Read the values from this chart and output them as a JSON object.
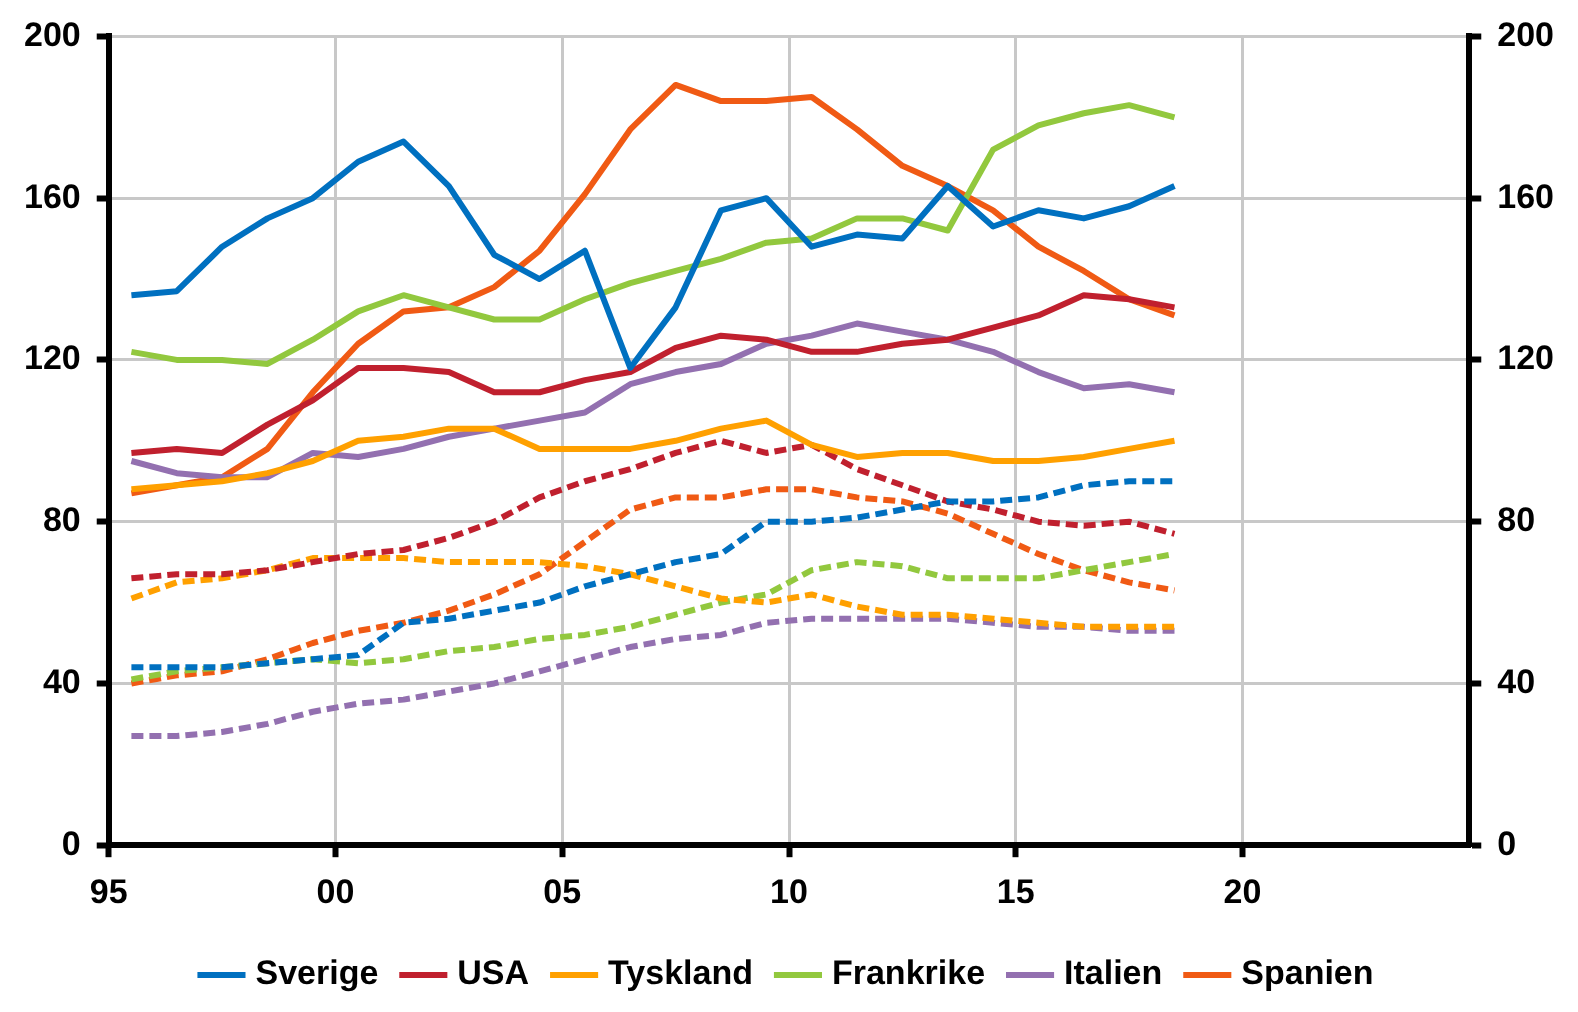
{
  "chart_data": {
    "type": "line",
    "x": [
      1995.5,
      1996.5,
      1997.5,
      1998.5,
      1999.5,
      2000.5,
      2001.5,
      2002.5,
      2003.5,
      2004.5,
      2005.5,
      2006.5,
      2007.5,
      2008.5,
      2009.5,
      2010.5,
      2011.5,
      2012.5,
      2013.5,
      2014.5,
      2015.5,
      2016.5,
      2017.5,
      2018.5
    ],
    "series": [
      {
        "name": "Sverige",
        "color": "#0070c0",
        "line_style": "solid",
        "values": [
          136,
          137,
          148,
          155,
          160,
          169,
          174,
          163,
          146,
          140,
          147,
          118,
          133,
          157,
          160,
          148,
          151,
          150,
          163,
          153,
          157,
          155,
          158,
          163
        ]
      },
      {
        "name": "USA",
        "color": "#c0202e",
        "line_style": "solid",
        "values": [
          97,
          98,
          97,
          104,
          110,
          118,
          118,
          117,
          112,
          112,
          115,
          117,
          123,
          126,
          125,
          122,
          122,
          124,
          125,
          128,
          131,
          136,
          135,
          133
        ]
      },
      {
        "name": "Tyskland",
        "color": "#ffa000",
        "line_style": "solid",
        "values": [
          88,
          89,
          90,
          92,
          95,
          100,
          101,
          103,
          103,
          98,
          98,
          98,
          100,
          103,
          105,
          99,
          96,
          97,
          97,
          95,
          95,
          96,
          98,
          100
        ]
      },
      {
        "name": "Frankrike",
        "color": "#92c83e",
        "line_style": "solid",
        "values": [
          122,
          120,
          120,
          119,
          125,
          132,
          136,
          133,
          130,
          130,
          135,
          139,
          142,
          145,
          149,
          150,
          155,
          155,
          152,
          172,
          178,
          181,
          183,
          180
        ]
      },
      {
        "name": "Italien",
        "color": "#9370b0",
        "line_style": "solid",
        "values": [
          95,
          92,
          91,
          91,
          97,
          96,
          98,
          101,
          103,
          105,
          107,
          114,
          117,
          119,
          124,
          126,
          129,
          127,
          125,
          122,
          117,
          113,
          114,
          112
        ]
      },
      {
        "name": "Spanien",
        "color": "#f05a14",
        "line_style": "solid",
        "values": [
          87,
          89,
          91,
          98,
          112,
          124,
          132,
          133,
          138,
          147,
          161,
          177,
          188,
          184,
          184,
          185,
          177,
          168,
          163,
          157,
          148,
          142,
          135,
          131
        ]
      },
      {
        "color": "#0070c0",
        "line_style": "dashed",
        "values": [
          44,
          44,
          44,
          45,
          46,
          47,
          55,
          56,
          58,
          60,
          64,
          67,
          70,
          72,
          80,
          80,
          81,
          83,
          85,
          85,
          86,
          89,
          90,
          90
        ]
      },
      {
        "color": "#c0202e",
        "line_style": "dashed",
        "values": [
          66,
          67,
          67,
          68,
          70,
          72,
          73,
          76,
          80,
          86,
          90,
          93,
          97,
          100,
          97,
          99,
          93,
          89,
          85,
          83,
          80,
          79,
          80,
          77
        ]
      },
      {
        "color": "#ffa000",
        "line_style": "dashed",
        "values": [
          61,
          65,
          66,
          68,
          71,
          71,
          71,
          70,
          70,
          70,
          69,
          67,
          64,
          61,
          60,
          62,
          59,
          57,
          57,
          56,
          55,
          54,
          54,
          54
        ]
      },
      {
        "color": "#92c83e",
        "line_style": "dashed",
        "values": [
          41,
          43,
          44,
          45,
          46,
          45,
          46,
          48,
          49,
          51,
          52,
          54,
          57,
          60,
          62,
          68,
          70,
          69,
          66,
          66,
          66,
          68,
          70,
          72
        ]
      },
      {
        "color": "#9370b0",
        "line_style": "dashed",
        "values": [
          27,
          27,
          28,
          30,
          33,
          35,
          36,
          38,
          40,
          43,
          46,
          49,
          51,
          52,
          55,
          56,
          56,
          56,
          56,
          55,
          54,
          54,
          53,
          53
        ]
      },
      {
        "color": "#f05a14",
        "line_style": "dashed",
        "values": [
          40,
          42,
          43,
          46,
          50,
          53,
          55,
          58,
          62,
          67,
          75,
          83,
          86,
          86,
          88,
          88,
          86,
          85,
          82,
          77,
          72,
          68,
          65,
          63
        ]
      }
    ],
    "xlim": [
      1995,
      2025
    ],
    "xticks": [
      {
        "value": 1995,
        "label": "95"
      },
      {
        "value": 2000,
        "label": "00"
      },
      {
        "value": 2005,
        "label": "05"
      },
      {
        "value": 2010,
        "label": "10"
      },
      {
        "value": 2015,
        "label": "15"
      },
      {
        "value": 2020,
        "label": "20"
      }
    ],
    "ylim": [
      0,
      200
    ],
    "yticks": [
      0,
      40,
      80,
      120,
      160,
      200
    ],
    "y2lim": [
      0,
      200
    ],
    "y2ticks": [
      0,
      40,
      80,
      120,
      160,
      200
    ],
    "grid": true,
    "legend": "bottom",
    "marker": "none"
  }
}
